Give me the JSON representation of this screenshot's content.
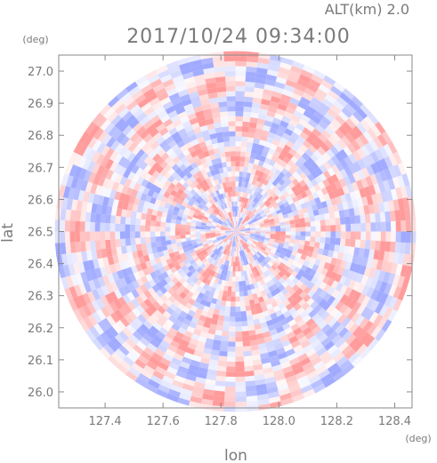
{
  "header": {
    "altitude_label": "ALT(km)",
    "altitude_value": "2.0",
    "timestamp": "2017/10/24 09:34:00"
  },
  "chart_data": {
    "type": "heatmap",
    "title": "2017/10/24 09:34:00",
    "xlabel": "lon",
    "ylabel": "lat",
    "x_unit": "(deg)",
    "y_unit": "(deg)",
    "xlim": [
      127.24,
      128.46
    ],
    "ylim": [
      25.95,
      27.05
    ],
    "x_ticks": [
      "127.4",
      "127.6",
      "127.8",
      "128.0",
      "128.2",
      "128.4"
    ],
    "y_ticks": [
      "26.0",
      "26.1",
      "26.2",
      "26.3",
      "26.4",
      "26.5",
      "26.6",
      "26.7",
      "26.8",
      "26.9",
      "27.0"
    ],
    "center": {
      "lon": 127.85,
      "lat": 26.5
    },
    "grid": false,
    "colormap": {
      "negative": "#8f9bff",
      "neutral": "#ffffff",
      "positive": "#ff8a8a"
    }
  }
}
